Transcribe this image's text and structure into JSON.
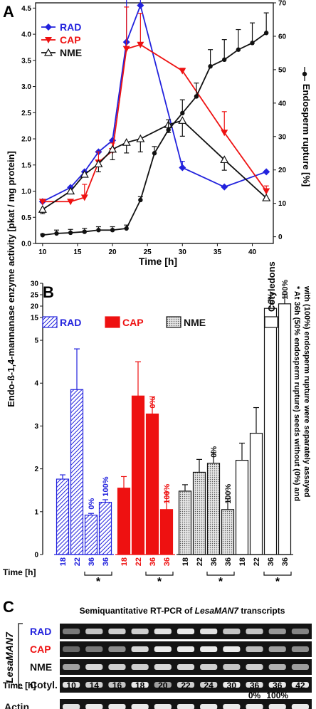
{
  "panel_a": {
    "letter": "A",
    "xlabel": "Time [h]",
    "ylabel_shared": "Endo-ß-1,4-mannanase enzyme activity [pkat / mg protein]",
    "ylabel_right": "Endosperm rupture [%]",
    "legend": [
      "RAD",
      "CAP",
      "NME"
    ],
    "x_ticks": [
      "10",
      "15",
      "20",
      "25",
      "30",
      "35",
      "40"
    ],
    "y_left_ticks": [
      "0.0",
      "0.5",
      "1.0",
      "1.5",
      "2.0",
      "2.5",
      "3.0",
      "3.5",
      "4.0",
      "4.5"
    ],
    "y_right_ticks": [
      "0",
      "10",
      "20",
      "30",
      "40",
      "50",
      "60",
      "70"
    ]
  },
  "panel_b": {
    "letter": "B",
    "time_label": "Time [h]",
    "groups": [
      "RAD",
      "CAP",
      "NME",
      "Cotyledons"
    ],
    "y_ticks_lower": [
      "0",
      "1",
      "2",
      "3",
      "4",
      "5"
    ],
    "y_ticks_upper": [
      "15",
      "20",
      "25",
      "30"
    ],
    "bar_times": [
      "18",
      "22",
      "36",
      "36"
    ],
    "pct_labels": [
      "0%",
      "100%"
    ],
    "asterisk": "*",
    "footnote_line1": "* At 36h (50% endosperm rupture) seeds without (0%) and",
    "footnote_line2": "with (100%) endosperm rupture were separately assayed"
  },
  "panel_c": {
    "letter": "C",
    "title_prefix": "Semiquantitative RT-PCR of ",
    "title_gene": "LesaMAN7",
    "title_suffix": " transcripts",
    "gene_label": "LesaMAN7",
    "row_labels": [
      "RAD",
      "CAP",
      "NME",
      "Cotyl.",
      "Actin"
    ],
    "time_label": "Time [h]",
    "times": [
      "10",
      "14",
      "16",
      "18",
      "20",
      "22",
      "24",
      "30",
      "36",
      "36",
      "42"
    ],
    "pct": [
      "0%",
      "100%"
    ],
    "band_intensity": [
      [
        0.35,
        0.75,
        0.8,
        0.8,
        0.9,
        0.95,
        0.9,
        0.75,
        0.75,
        0.5,
        0.4
      ],
      [
        0.25,
        0.35,
        0.45,
        0.85,
        0.95,
        0.95,
        0.95,
        0.95,
        0.7,
        0.55,
        0.45
      ],
      [
        0.55,
        0.85,
        0.8,
        0.8,
        0.85,
        0.85,
        0.8,
        0.75,
        0.8,
        0.65,
        0.55
      ],
      [
        0.9,
        0.8,
        0.75,
        0.95,
        0.55,
        0.8,
        0.8,
        0.95,
        0.9,
        0.95,
        0.95
      ],
      [
        0.9,
        0.95,
        0.95,
        0.95,
        0.95,
        0.95,
        0.95,
        0.95,
        0.95,
        0.95,
        0.95
      ]
    ]
  },
  "colors": {
    "rad": "#2222dd",
    "cap": "#ee1111",
    "nme": "#111111",
    "rupture": "#111111"
  },
  "chart_data": [
    {
      "type": "line",
      "xlabel": "Time [h]",
      "ylabel": "Endo-ß-1,4-mannanase enzyme activity [pkat / mg protein]",
      "y2label": "Endosperm rupture [%]",
      "xlim": [
        9,
        43
      ],
      "ylim": [
        0,
        4.6
      ],
      "y2lim": [
        -2,
        70
      ],
      "legend_position": "top-left",
      "series": [
        {
          "name": "RAD",
          "marker": "diamond",
          "x": [
            10,
            14,
            16,
            18,
            20,
            22,
            24,
            30,
            36,
            42
          ],
          "y": [
            0.8,
            1.07,
            1.37,
            1.75,
            1.97,
            3.85,
            4.55,
            1.45,
            1.08,
            1.37
          ],
          "err": [
            0,
            0,
            0,
            0,
            0,
            1.0,
            1.0,
            0.12,
            0,
            0
          ]
        },
        {
          "name": "CAP",
          "marker": "triangle-down",
          "x": [
            10,
            14,
            16,
            18,
            20,
            22,
            24,
            30,
            36,
            42
          ],
          "y": [
            0.8,
            0.8,
            0.88,
            1.55,
            1.77,
            3.72,
            3.8,
            3.3,
            2.12,
            1.0
          ],
          "err": [
            0,
            0,
            0.25,
            0.2,
            0.15,
            0.8,
            0.6,
            0.05,
            0.4,
            0.1
          ]
        },
        {
          "name": "NME",
          "marker": "triangle-up",
          "x": [
            10,
            14,
            16,
            18,
            20,
            22,
            24,
            28,
            30,
            36,
            42
          ],
          "y": [
            0.65,
            1.0,
            1.32,
            1.52,
            1.8,
            1.93,
            2.0,
            2.27,
            2.35,
            1.6,
            0.87
          ],
          "err": [
            0.08,
            0.05,
            0.05,
            0.15,
            0.2,
            0.2,
            0.25,
            0.15,
            0.3,
            0.2,
            0.05
          ],
          "err_dir": "down"
        },
        {
          "name": "Endosperm rupture",
          "axis": "right",
          "marker": "circle",
          "x": [
            10,
            12,
            14,
            16,
            18,
            20,
            22,
            24,
            26,
            28,
            30,
            32,
            34,
            36,
            38,
            40,
            42
          ],
          "y": [
            0.5,
            1,
            1.2,
            1.5,
            2,
            2,
            2.5,
            11,
            25,
            32,
            37,
            42,
            51,
            53,
            56,
            58,
            61
          ],
          "err": [
            0.3,
            1,
            1,
            1,
            1,
            1,
            1,
            1,
            2,
            3,
            4,
            4,
            5,
            6,
            6,
            6,
            6
          ]
        }
      ]
    },
    {
      "type": "bar",
      "ylabel": "Endo-ß-1,4-mannanase enzyme activity [pkat / mg protein]",
      "xlabel": "Time [h]",
      "ylim_lower": [
        0,
        5.3
      ],
      "ylim_upper": [
        15,
        30
      ],
      "groups": [
        {
          "name": "RAD",
          "times": [
            "18",
            "22",
            "36",
            "36"
          ],
          "labels": [
            "",
            "",
            "0%",
            "100%"
          ],
          "values": [
            1.76,
            3.85,
            0.92,
            1.22
          ],
          "err": [
            0.1,
            0.95,
            0.04,
            0.06
          ]
        },
        {
          "name": "CAP",
          "times": [
            "18",
            "22",
            "36",
            "36"
          ],
          "labels": [
            "",
            "",
            "0%",
            "100%"
          ],
          "values": [
            1.55,
            3.7,
            3.28,
            1.05
          ],
          "err": [
            0.27,
            0.8,
            0.4,
            0.4
          ]
        },
        {
          "name": "NME",
          "times": [
            "18",
            "22",
            "36",
            "36"
          ],
          "labels": [
            "",
            "",
            "0%",
            "100%"
          ],
          "values": [
            1.48,
            1.92,
            2.13,
            1.05
          ],
          "err": [
            0.15,
            0.3,
            0.25,
            0.25
          ]
        },
        {
          "name": "Cotyledons",
          "times": [
            "18",
            "22",
            "36",
            "36"
          ],
          "labels": [
            "",
            "",
            "0%",
            "100%"
          ],
          "values": [
            2.2,
            2.83,
            19.0,
            21.0
          ],
          "err": [
            0.4,
            0.6,
            3.5,
            4.0
          ]
        }
      ]
    }
  ]
}
